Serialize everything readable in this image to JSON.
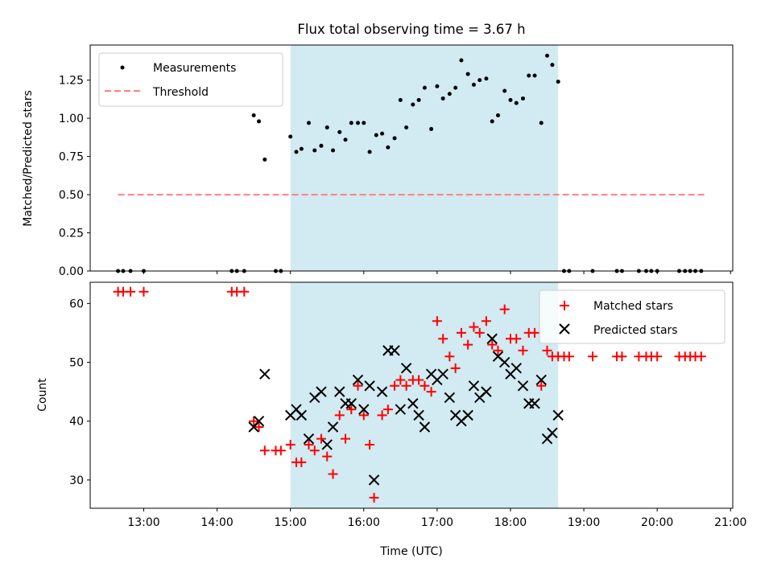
{
  "colors": {
    "shade": "#add8e6",
    "measurement": "#000000",
    "threshold": "#ff7f7f",
    "matched": "#ff0000",
    "predicted": "#000000"
  },
  "chart_data": [
    {
      "type": "scatter",
      "title": "Flux total observing time = 3.67 h",
      "xlabel": "",
      "ylabel": "Matched/Predicted stars",
      "xlim": [
        12.27,
        21.03
      ],
      "ylim": [
        0,
        1.48
      ],
      "yticks": [
        0,
        0.25,
        0.5,
        0.75,
        1.0,
        1.25
      ],
      "ytick_labels": [
        "0.00",
        "0.25",
        "0.50",
        "0.75",
        "1.00",
        "1.25"
      ],
      "shaded_interval": [
        15.0,
        18.65
      ],
      "legend": {
        "position": "top-left",
        "entries": [
          "Measurements",
          "Threshold"
        ]
      },
      "series": [
        {
          "name": "Measurements",
          "marker": "dot",
          "points": [
            [
              12.65,
              0
            ],
            [
              12.72,
              0
            ],
            [
              12.82,
              0
            ],
            [
              13.0,
              0
            ],
            [
              14.2,
              0
            ],
            [
              14.27,
              0
            ],
            [
              14.37,
              0
            ],
            [
              14.5,
              1.02
            ],
            [
              14.57,
              0.98
            ],
            [
              14.65,
              0.73
            ],
            [
              14.8,
              0
            ],
            [
              14.87,
              0
            ],
            [
              15.0,
              0.88
            ],
            [
              15.08,
              0.78
            ],
            [
              15.15,
              0.8
            ],
            [
              15.25,
              0.97
            ],
            [
              15.33,
              0.79
            ],
            [
              15.42,
              0.82
            ],
            [
              15.5,
              0.94
            ],
            [
              15.58,
              0.79
            ],
            [
              15.67,
              0.91
            ],
            [
              15.75,
              0.86
            ],
            [
              15.83,
              0.97
            ],
            [
              15.92,
              0.97
            ],
            [
              16.0,
              0.97
            ],
            [
              16.08,
              0.78
            ],
            [
              16.17,
              0.89
            ],
            [
              16.25,
              0.9
            ],
            [
              16.33,
              0.81
            ],
            [
              16.42,
              0.87
            ],
            [
              16.5,
              1.12
            ],
            [
              16.58,
              0.94
            ],
            [
              16.67,
              1.09
            ],
            [
              16.75,
              1.12
            ],
            [
              16.83,
              1.2
            ],
            [
              16.92,
              0.93
            ],
            [
              17.0,
              1.21
            ],
            [
              17.08,
              1.13
            ],
            [
              17.17,
              1.16
            ],
            [
              17.25,
              1.2
            ],
            [
              17.33,
              1.38
            ],
            [
              17.42,
              1.29
            ],
            [
              17.5,
              1.22
            ],
            [
              17.58,
              1.25
            ],
            [
              17.67,
              1.26
            ],
            [
              17.75,
              0.98
            ],
            [
              17.83,
              1.02
            ],
            [
              17.92,
              1.18
            ],
            [
              18.0,
              1.12
            ],
            [
              18.08,
              1.1
            ],
            [
              18.17,
              1.13
            ],
            [
              18.25,
              1.28
            ],
            [
              18.33,
              1.28
            ],
            [
              18.42,
              0.97
            ],
            [
              18.5,
              1.41
            ],
            [
              18.57,
              1.35
            ],
            [
              18.65,
              1.24
            ],
            [
              18.73,
              0
            ],
            [
              18.8,
              0
            ],
            [
              19.12,
              0
            ],
            [
              19.45,
              0
            ],
            [
              19.52,
              0
            ],
            [
              19.75,
              0
            ],
            [
              19.85,
              0
            ],
            [
              19.92,
              0
            ],
            [
              20.0,
              0
            ],
            [
              20.3,
              0
            ],
            [
              20.38,
              0
            ],
            [
              20.45,
              0
            ],
            [
              20.52,
              0
            ],
            [
              20.6,
              0
            ]
          ]
        },
        {
          "name": "Threshold",
          "marker": "dashed-line",
          "points": [
            [
              12.65,
              0.5
            ],
            [
              20.65,
              0.5
            ]
          ]
        }
      ]
    },
    {
      "type": "scatter",
      "title": "",
      "xlabel": "Time (UTC)",
      "ylabel": "Count",
      "xlim": [
        12.27,
        21.03
      ],
      "ylim": [
        25.2,
        63.6
      ],
      "yticks": [
        30,
        40,
        50,
        60
      ],
      "ytick_labels": [
        "30",
        "40",
        "50",
        "60"
      ],
      "xticks": [
        13,
        14,
        15,
        16,
        17,
        18,
        19,
        20,
        21
      ],
      "xtick_labels": [
        "13:00",
        "14:00",
        "15:00",
        "16:00",
        "17:00",
        "18:00",
        "19:00",
        "20:00",
        "21:00"
      ],
      "shaded_interval": [
        15.0,
        18.65
      ],
      "legend": {
        "position": "top-right",
        "entries": [
          "Matched stars",
          "Predicted stars"
        ]
      },
      "series": [
        {
          "name": "Matched stars",
          "marker": "plus",
          "points": [
            [
              12.65,
              62
            ],
            [
              12.72,
              62
            ],
            [
              12.82,
              62
            ],
            [
              13.0,
              62
            ],
            [
              14.2,
              62
            ],
            [
              14.27,
              62
            ],
            [
              14.37,
              62
            ],
            [
              14.5,
              40
            ],
            [
              14.57,
              39
            ],
            [
              14.65,
              35
            ],
            [
              14.8,
              35
            ],
            [
              14.87,
              35
            ],
            [
              15.0,
              36
            ],
            [
              15.08,
              33
            ],
            [
              15.15,
              33
            ],
            [
              15.25,
              36
            ],
            [
              15.33,
              35
            ],
            [
              15.42,
              37
            ],
            [
              15.5,
              34
            ],
            [
              15.58,
              31
            ],
            [
              15.67,
              41
            ],
            [
              15.75,
              37
            ],
            [
              15.83,
              42
            ],
            [
              15.92,
              46
            ],
            [
              16.0,
              41
            ],
            [
              16.08,
              36
            ],
            [
              16.14,
              27
            ],
            [
              16.25,
              41
            ],
            [
              16.33,
              42
            ],
            [
              16.42,
              46
            ],
            [
              16.5,
              47
            ],
            [
              16.58,
              46
            ],
            [
              16.67,
              47
            ],
            [
              16.75,
              47
            ],
            [
              16.83,
              46
            ],
            [
              16.92,
              45
            ],
            [
              17.0,
              57
            ],
            [
              17.08,
              54
            ],
            [
              17.17,
              51
            ],
            [
              17.25,
              49
            ],
            [
              17.33,
              55
            ],
            [
              17.42,
              53
            ],
            [
              17.5,
              56
            ],
            [
              17.58,
              55
            ],
            [
              17.67,
              57
            ],
            [
              17.75,
              53
            ],
            [
              17.83,
              52
            ],
            [
              17.92,
              59
            ],
            [
              18.0,
              54
            ],
            [
              18.08,
              54
            ],
            [
              18.17,
              52
            ],
            [
              18.25,
              55
            ],
            [
              18.33,
              55
            ],
            [
              18.42,
              46
            ],
            [
              18.5,
              52
            ],
            [
              18.57,
              51
            ],
            [
              18.65,
              51
            ],
            [
              18.73,
              51
            ],
            [
              18.8,
              51
            ],
            [
              19.12,
              51
            ],
            [
              19.45,
              51
            ],
            [
              19.52,
              51
            ],
            [
              19.75,
              51
            ],
            [
              19.85,
              51
            ],
            [
              19.92,
              51
            ],
            [
              20.0,
              51
            ],
            [
              20.3,
              51
            ],
            [
              20.38,
              51
            ],
            [
              20.45,
              51
            ],
            [
              20.52,
              51
            ],
            [
              20.6,
              51
            ]
          ]
        },
        {
          "name": "Predicted stars",
          "marker": "x",
          "points": [
            [
              14.5,
              39
            ],
            [
              14.57,
              40
            ],
            [
              14.65,
              48
            ],
            [
              15.0,
              41
            ],
            [
              15.08,
              42
            ],
            [
              15.15,
              41
            ],
            [
              15.25,
              37
            ],
            [
              15.33,
              44
            ],
            [
              15.42,
              45
            ],
            [
              15.5,
              36
            ],
            [
              15.58,
              39
            ],
            [
              15.67,
              45
            ],
            [
              15.75,
              43
            ],
            [
              15.83,
              43
            ],
            [
              15.92,
              47
            ],
            [
              16.0,
              42
            ],
            [
              16.08,
              46
            ],
            [
              16.14,
              30
            ],
            [
              16.25,
              45
            ],
            [
              16.33,
              52
            ],
            [
              16.42,
              52
            ],
            [
              16.5,
              42
            ],
            [
              16.58,
              49
            ],
            [
              16.67,
              43
            ],
            [
              16.75,
              41
            ],
            [
              16.83,
              39
            ],
            [
              16.92,
              48
            ],
            [
              17.0,
              47
            ],
            [
              17.08,
              48
            ],
            [
              17.17,
              44
            ],
            [
              17.25,
              41
            ],
            [
              17.33,
              40
            ],
            [
              17.42,
              41
            ],
            [
              17.5,
              46
            ],
            [
              17.58,
              44
            ],
            [
              17.67,
              45
            ],
            [
              17.75,
              54
            ],
            [
              17.83,
              51
            ],
            [
              17.92,
              50
            ],
            [
              18.0,
              48
            ],
            [
              18.08,
              49
            ],
            [
              18.17,
              46
            ],
            [
              18.25,
              43
            ],
            [
              18.33,
              43
            ],
            [
              18.42,
              47
            ],
            [
              18.5,
              37
            ],
            [
              18.57,
              38
            ],
            [
              18.65,
              41
            ]
          ]
        }
      ]
    }
  ]
}
